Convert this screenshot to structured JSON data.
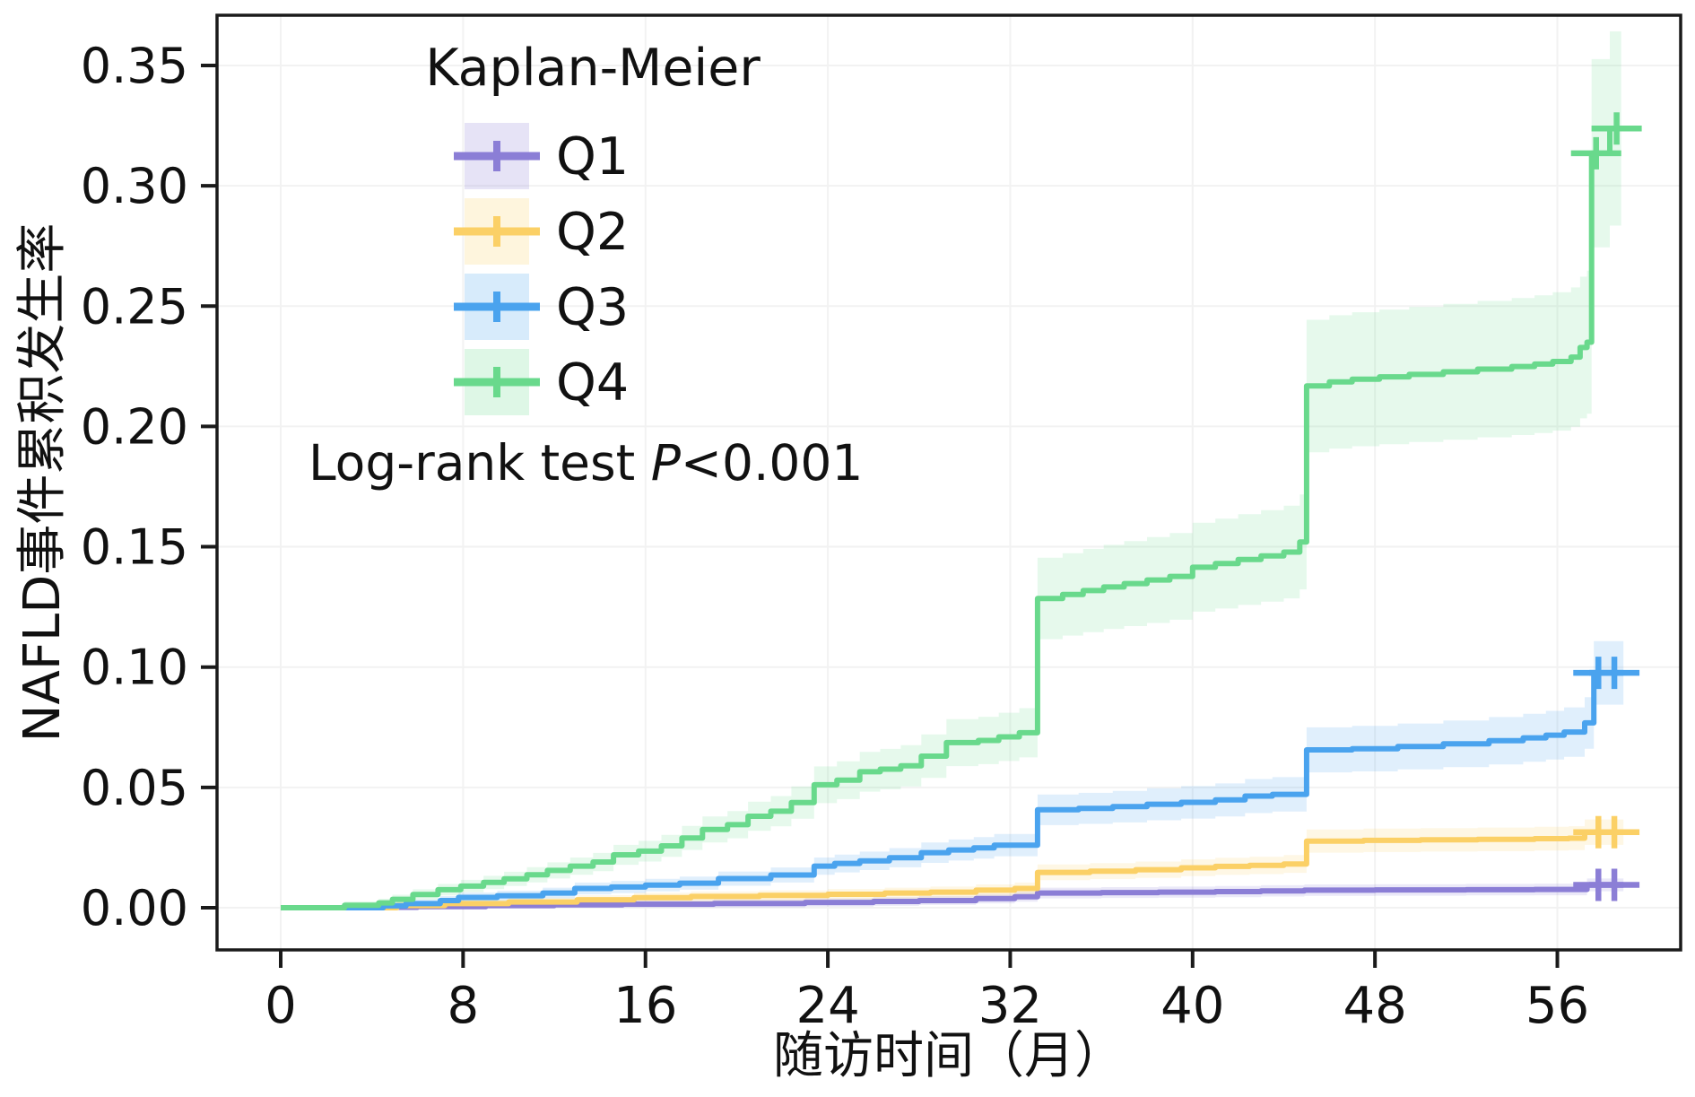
{
  "figure": {
    "background": "#ffffff"
  },
  "legend": {
    "title": "Kaplan-Meier",
    "entries": [
      {
        "label": "Q1",
        "color": "#8b7ed6"
      },
      {
        "label": "Q2",
        "color": "#fbd066"
      },
      {
        "label": "Q3",
        "color": "#4aa3ee"
      },
      {
        "label": "Q4",
        "color": "#69d98c"
      }
    ]
  },
  "annotation": {
    "prefix": "Log-rank test ",
    "p_italic": "P",
    "suffix": "<0.001"
  },
  "axes": {
    "x": {
      "label": "随访时间（月）",
      "ticks": [
        0,
        8,
        16,
        24,
        32,
        40,
        48,
        56
      ],
      "range": [
        0,
        61
      ]
    },
    "y": {
      "label": "NAFLD事件累积发生率",
      "ticks": [
        {
          "value": 0.0,
          "label": "0.00"
        },
        {
          "value": 0.05,
          "label": "0.05"
        },
        {
          "value": 0.1,
          "label": "0.10"
        },
        {
          "value": 0.15,
          "label": "0.15"
        },
        {
          "value": 0.2,
          "label": "0.20"
        },
        {
          "value": 0.25,
          "label": "0.25"
        },
        {
          "value": 0.3,
          "label": "0.30"
        },
        {
          "value": 0.35,
          "label": "0.35"
        }
      ],
      "range": [
        -0.018,
        0.371
      ]
    }
  },
  "chart_data": {
    "type": "line",
    "subtype": "kaplan-meier-cumulative-incidence-step-curves-with-ci-bands",
    "title": "Kaplan-Meier",
    "xlabel": "随访时间（月）",
    "ylabel": "NAFLD事件累积发生率",
    "x_unit": "months",
    "xlim": [
      0,
      61
    ],
    "ylim": [
      -0.018,
      0.371
    ],
    "grid": "faint major grid",
    "legend_position": "upper left inside plot",
    "ci_fraction": 0.12,
    "ci_floor": 0.0015,
    "series": [
      {
        "name": "Q1",
        "color": "#8b7ed6",
        "points": [
          [
            0,
            0
          ],
          [
            3,
            0.0002
          ],
          [
            6,
            0.0005
          ],
          [
            9,
            0.0009
          ],
          [
            12,
            0.0012
          ],
          [
            15,
            0.0015
          ],
          [
            19,
            0.0018
          ],
          [
            23,
            0.0022
          ],
          [
            26,
            0.0026
          ],
          [
            28,
            0.003
          ],
          [
            30.5,
            0.0038
          ],
          [
            32.2,
            0.0046
          ],
          [
            33.2,
            0.0061
          ],
          [
            36,
            0.0063
          ],
          [
            38.5,
            0.0065
          ],
          [
            41,
            0.0067
          ],
          [
            43,
            0.007
          ],
          [
            44.9,
            0.0073
          ],
          [
            48,
            0.0074
          ],
          [
            52,
            0.0075
          ],
          [
            55,
            0.0076
          ],
          [
            57.3,
            0.0095
          ],
          [
            58.9,
            0.0095
          ]
        ],
        "censors": [
          [
            57.8,
            0.0095
          ],
          [
            58.5,
            0.0095
          ]
        ]
      },
      {
        "name": "Q2",
        "color": "#fbd066",
        "points": [
          [
            0,
            0
          ],
          [
            5.1,
            0.0009
          ],
          [
            7.2,
            0.0017
          ],
          [
            10,
            0.0024
          ],
          [
            13,
            0.0033
          ],
          [
            15.5,
            0.0042
          ],
          [
            18,
            0.0047
          ],
          [
            21,
            0.0051
          ],
          [
            24,
            0.0056
          ],
          [
            26.5,
            0.0061
          ],
          [
            28.5,
            0.0065
          ],
          [
            30.5,
            0.0073
          ],
          [
            32.2,
            0.008
          ],
          [
            33.2,
            0.0147
          ],
          [
            35.5,
            0.0152
          ],
          [
            37.5,
            0.0158
          ],
          [
            39.5,
            0.0166
          ],
          [
            41,
            0.0172
          ],
          [
            42.5,
            0.0176
          ],
          [
            44,
            0.0182
          ],
          [
            45,
            0.0277
          ],
          [
            47.5,
            0.028
          ],
          [
            50,
            0.0282
          ],
          [
            52.5,
            0.0284
          ],
          [
            55,
            0.0287
          ],
          [
            56.5,
            0.0289
          ],
          [
            57.2,
            0.0314
          ],
          [
            58.9,
            0.0314
          ]
        ],
        "censors": [
          [
            57.8,
            0.0314
          ],
          [
            58.5,
            0.0314
          ]
        ]
      },
      {
        "name": "Q3",
        "color": "#4aa3ee",
        "points": [
          [
            0,
            0
          ],
          [
            4.5,
            0.0008
          ],
          [
            5.5,
            0.0017
          ],
          [
            7,
            0.003
          ],
          [
            7.8,
            0.0043
          ],
          [
            9.5,
            0.005
          ],
          [
            11.5,
            0.0061
          ],
          [
            12.9,
            0.008
          ],
          [
            14.5,
            0.0086
          ],
          [
            16,
            0.0094
          ],
          [
            17.5,
            0.0102
          ],
          [
            19.2,
            0.0121
          ],
          [
            21.5,
            0.0136
          ],
          [
            23.4,
            0.0173
          ],
          [
            24.3,
            0.0184
          ],
          [
            25.4,
            0.0195
          ],
          [
            26.7,
            0.0208
          ],
          [
            28.1,
            0.0229
          ],
          [
            29.3,
            0.024
          ],
          [
            30.4,
            0.0249
          ],
          [
            31.3,
            0.026
          ],
          [
            33.2,
            0.0407
          ],
          [
            35,
            0.0413
          ],
          [
            36.5,
            0.042
          ],
          [
            38,
            0.043
          ],
          [
            39.5,
            0.0438
          ],
          [
            41,
            0.0448
          ],
          [
            42.3,
            0.0464
          ],
          [
            43.5,
            0.0471
          ],
          [
            45,
            0.0656
          ],
          [
            47,
            0.0661
          ],
          [
            49,
            0.067
          ],
          [
            51,
            0.0681
          ],
          [
            53,
            0.0694
          ],
          [
            54.5,
            0.0706
          ],
          [
            55.5,
            0.0717
          ],
          [
            56.3,
            0.073
          ],
          [
            57.2,
            0.0768
          ],
          [
            57.6,
            0.0976
          ],
          [
            58.9,
            0.0976
          ]
        ],
        "censors": [
          [
            57.8,
            0.0976
          ],
          [
            58.5,
            0.0976
          ]
        ]
      },
      {
        "name": "Q4",
        "color": "#69d98c",
        "points": [
          [
            0,
            0
          ],
          [
            2.8,
            0.001
          ],
          [
            4.3,
            0.002
          ],
          [
            4.9,
            0.0035
          ],
          [
            5.8,
            0.0055
          ],
          [
            6.9,
            0.0075
          ],
          [
            7.9,
            0.009
          ],
          [
            8.9,
            0.0105
          ],
          [
            9.8,
            0.012
          ],
          [
            10.8,
            0.0137
          ],
          [
            11.7,
            0.0155
          ],
          [
            12.7,
            0.0173
          ],
          [
            13.7,
            0.019
          ],
          [
            14.6,
            0.022
          ],
          [
            15.7,
            0.0235
          ],
          [
            16.7,
            0.0257
          ],
          [
            17.6,
            0.029
          ],
          [
            18.5,
            0.0325
          ],
          [
            19.6,
            0.0345
          ],
          [
            20.5,
            0.038
          ],
          [
            21.5,
            0.0401
          ],
          [
            22.4,
            0.0437
          ],
          [
            23.4,
            0.0511
          ],
          [
            24.4,
            0.053
          ],
          [
            25.4,
            0.0565
          ],
          [
            26.3,
            0.0576
          ],
          [
            27.2,
            0.059
          ],
          [
            28.1,
            0.063
          ],
          [
            29.2,
            0.0686
          ],
          [
            30.6,
            0.0695
          ],
          [
            31.5,
            0.071
          ],
          [
            32.4,
            0.0727
          ],
          [
            33.2,
            0.1285
          ],
          [
            34.3,
            0.1302
          ],
          [
            35.2,
            0.1318
          ],
          [
            36.1,
            0.1333
          ],
          [
            37,
            0.1347
          ],
          [
            38,
            0.1362
          ],
          [
            39,
            0.1377
          ],
          [
            40,
            0.1415
          ],
          [
            41,
            0.143
          ],
          [
            42,
            0.1447
          ],
          [
            43,
            0.1462
          ],
          [
            44,
            0.1478
          ],
          [
            44.7,
            0.152
          ],
          [
            45,
            0.2168
          ],
          [
            46,
            0.2185
          ],
          [
            47,
            0.2196
          ],
          [
            48.2,
            0.2206
          ],
          [
            49.5,
            0.2216
          ],
          [
            51,
            0.2227
          ],
          [
            52.5,
            0.2238
          ],
          [
            54,
            0.2249
          ],
          [
            55,
            0.2259
          ],
          [
            55.8,
            0.227
          ],
          [
            56.6,
            0.2288
          ],
          [
            57,
            0.2328
          ],
          [
            57.3,
            0.235
          ],
          [
            57.5,
            0.3135
          ],
          [
            58.3,
            0.3238
          ],
          [
            58.8,
            0.3238
          ]
        ],
        "censors": [
          [
            57.7,
            0.3135
          ],
          [
            58.6,
            0.3238
          ]
        ]
      }
    ]
  }
}
